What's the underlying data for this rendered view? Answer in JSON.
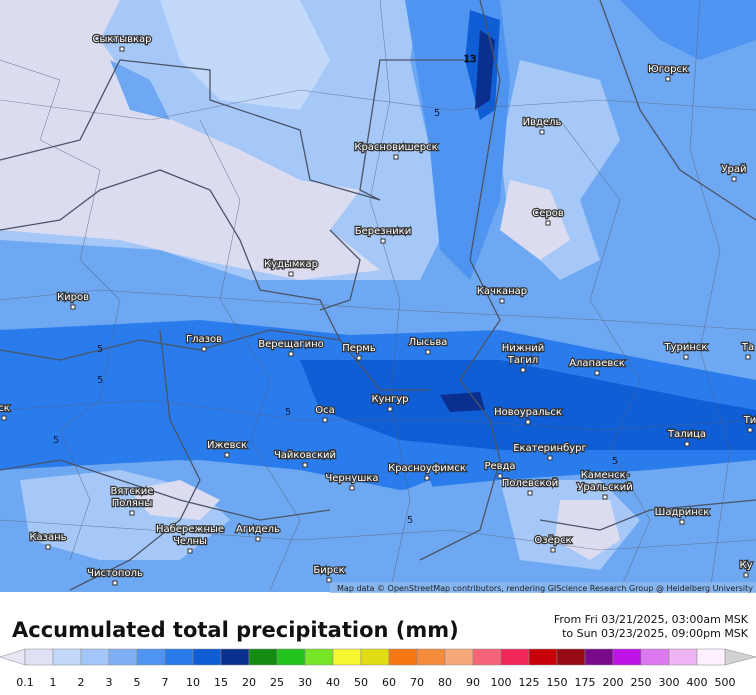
{
  "map": {
    "cities": [
      [
        "Сыктывкар"
      ],
      [
        "Югорск"
      ],
      [
        "Ивдель"
      ],
      [
        "Красновишерск"
      ],
      [
        "Урай"
      ],
      [
        "Серов"
      ],
      [
        "Березники"
      ],
      [
        "Кудымкар"
      ],
      [
        "Качканар"
      ],
      [
        "Киров"
      ],
      [
        "Глазов"
      ],
      [
        "Верещагино"
      ],
      [
        "Пермь"
      ],
      [
        "Лысьва"
      ],
      [
        "Нижний",
        "Тагил"
      ],
      [
        "Туринск"
      ],
      [
        "Та"
      ],
      [
        "Алапаевск"
      ],
      [
        "Кунгур"
      ],
      [
        "Оса"
      ],
      [
        "Новоуральск"
      ],
      [
        "Ти"
      ],
      [
        "Екатеринбург"
      ],
      [
        "Талица"
      ],
      [
        "Ижевск"
      ],
      [
        "Чайковский"
      ],
      [
        "Красноуфимск"
      ],
      [
        "Ревда"
      ],
      [
        "Каменск-",
        "Уральский"
      ],
      [
        "Чернушка"
      ],
      [
        "Полевской"
      ],
      [
        "Вятские",
        "Поляны"
      ],
      [
        "Набережные",
        "Челны"
      ],
      [
        "Агидель"
      ],
      [
        "Шадринск"
      ],
      [
        "Казань"
      ],
      [
        "Озёрск"
      ],
      [
        "Ку"
      ],
      [
        "Чистополь"
      ],
      [
        "Бирск"
      ],
      [
        "ск"
      ]
    ],
    "contour_labels": [
      13,
      5,
      5,
      5,
      5,
      5,
      5,
      5
    ],
    "attribution": "Map data © OpenStreetMap contributors, rendering GIScience Research Group @ Heidelberg University"
  },
  "header": {
    "title": "Accumulated total precipitation (mm)",
    "from": "From Fri 03/21/2025, 03:00am MSK",
    "to": "to Sun 03/23/2025, 09:00pm MSK"
  },
  "legend": {
    "values": [
      0.1,
      1,
      2,
      3,
      5,
      7,
      10,
      15,
      20,
      25,
      30,
      40,
      50,
      60,
      70,
      80,
      90,
      100,
      125,
      150,
      175,
      200,
      250,
      300,
      400,
      500
    ],
    "colors": [
      "#e1e1f5",
      "#c2d9fa",
      "#a2c6f8",
      "#7fb0f5",
      "#4f94f0",
      "#2a7cec",
      "#0f5ed6",
      "#0a2f8f",
      "#148c14",
      "#23c41e",
      "#78e628",
      "#f5f532",
      "#e1dc14",
      "#f57814",
      "#f58c3c",
      "#f5a87a",
      "#f56478",
      "#f0285a",
      "#c8000a",
      "#960a14",
      "#780a8c",
      "#be14e6",
      "#dc78f0",
      "#f0b4f5",
      "#fff0ff"
    ],
    "under_color": "#e6e6f5",
    "over_color": "#d2d2d2"
  }
}
